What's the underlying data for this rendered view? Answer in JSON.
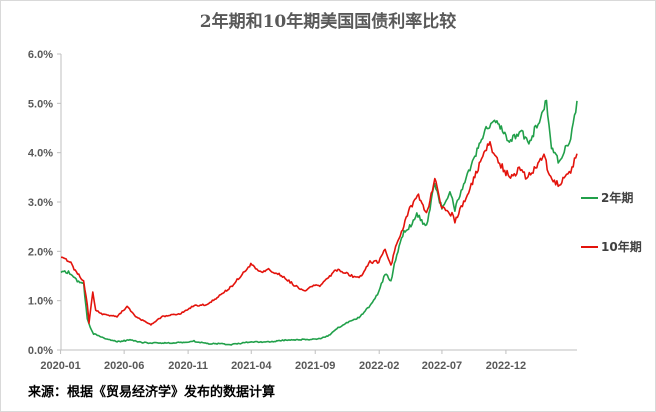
{
  "chart_data": {
    "type": "line",
    "title": "2年期和10年期美国国债利率比较",
    "source_note": "来源：根据《贸易经济学》发布的数据计算",
    "x_range": [
      "2020-01-02",
      "2023-05-20"
    ],
    "x_ticks": [
      {
        "date": "2020-01-01",
        "label": "2020-01"
      },
      {
        "date": "2020-06-01",
        "label": "2020-06"
      },
      {
        "date": "2020-11-01",
        "label": "2020-11"
      },
      {
        "date": "2021-04-01",
        "label": "2021-04"
      },
      {
        "date": "2021-09-01",
        "label": "2021-09"
      },
      {
        "date": "2022-02-01",
        "label": "2022-02"
      },
      {
        "date": "2022-07-01",
        "label": "2022-07"
      },
      {
        "date": "2022-12-01",
        "label": "2022-12"
      }
    ],
    "y_ticks": [
      {
        "value": 0,
        "label": "0.0%"
      },
      {
        "value": 1,
        "label": "1.0%"
      },
      {
        "value": 2,
        "label": "2.0%"
      },
      {
        "value": 3,
        "label": "3.0%"
      },
      {
        "value": 4,
        "label": "4.0%"
      },
      {
        "value": 5,
        "label": "5.0%"
      },
      {
        "value": 6,
        "label": "6.0%"
      }
    ],
    "ylim": [
      0,
      6
    ],
    "ylabel_unit": "%",
    "grid": false,
    "legend_position": "right",
    "series": [
      {
        "name": "2年期",
        "color": "#21a04a",
        "points": [
          [
            "2020-01-02",
            1.57
          ],
          [
            "2020-01-20",
            1.58
          ],
          [
            "2020-02-10",
            1.4
          ],
          [
            "2020-02-25",
            1.35
          ],
          [
            "2020-03-05",
            0.62
          ],
          [
            "2020-03-12",
            0.45
          ],
          [
            "2020-03-20",
            0.33
          ],
          [
            "2020-04-10",
            0.25
          ],
          [
            "2020-05-15",
            0.17
          ],
          [
            "2020-06-15",
            0.2
          ],
          [
            "2020-07-15",
            0.15
          ],
          [
            "2020-08-15",
            0.14
          ],
          [
            "2020-09-15",
            0.14
          ],
          [
            "2020-10-15",
            0.15
          ],
          [
            "2020-11-15",
            0.18
          ],
          [
            "2020-12-15",
            0.13
          ],
          [
            "2021-01-15",
            0.13
          ],
          [
            "2021-02-15",
            0.11
          ],
          [
            "2021-03-15",
            0.15
          ],
          [
            "2021-04-15",
            0.16
          ],
          [
            "2021-05-15",
            0.16
          ],
          [
            "2021-06-15",
            0.2
          ],
          [
            "2021-07-15",
            0.21
          ],
          [
            "2021-08-15",
            0.21
          ],
          [
            "2021-09-10",
            0.23
          ],
          [
            "2021-10-01",
            0.28
          ],
          [
            "2021-10-20",
            0.42
          ],
          [
            "2021-11-15",
            0.55
          ],
          [
            "2021-12-15",
            0.66
          ],
          [
            "2022-01-10",
            0.9
          ],
          [
            "2022-01-31",
            1.18
          ],
          [
            "2022-02-15",
            1.55
          ],
          [
            "2022-03-01",
            1.4
          ],
          [
            "2022-03-15",
            1.95
          ],
          [
            "2022-04-01",
            2.4
          ],
          [
            "2022-04-15",
            2.5
          ],
          [
            "2022-05-02",
            2.75
          ],
          [
            "2022-05-25",
            2.5
          ],
          [
            "2022-06-14",
            3.4
          ],
          [
            "2022-07-01",
            2.85
          ],
          [
            "2022-07-20",
            3.2
          ],
          [
            "2022-08-01",
            2.85
          ],
          [
            "2022-08-25",
            3.4
          ],
          [
            "2022-09-15",
            3.85
          ],
          [
            "2022-10-01",
            4.2
          ],
          [
            "2022-10-20",
            4.55
          ],
          [
            "2022-11-04",
            4.72
          ],
          [
            "2022-11-20",
            4.5
          ],
          [
            "2022-12-01",
            4.3
          ],
          [
            "2022-12-15",
            4.25
          ],
          [
            "2023-01-05",
            4.45
          ],
          [
            "2023-01-25",
            4.2
          ],
          [
            "2023-02-10",
            4.5
          ],
          [
            "2023-02-25",
            4.8
          ],
          [
            "2023-03-08",
            5.07
          ],
          [
            "2023-03-20",
            4.05
          ],
          [
            "2023-04-05",
            3.85
          ],
          [
            "2023-04-25",
            4.1
          ],
          [
            "2023-05-05",
            4.3
          ],
          [
            "2023-05-20",
            5.05
          ]
        ]
      },
      {
        "name": "10年期",
        "color": "#e3130c",
        "points": [
          [
            "2020-01-02",
            1.88
          ],
          [
            "2020-01-20",
            1.82
          ],
          [
            "2020-02-05",
            1.62
          ],
          [
            "2020-02-25",
            1.38
          ],
          [
            "2020-03-05",
            0.92
          ],
          [
            "2020-03-09",
            0.54
          ],
          [
            "2020-03-18",
            1.18
          ],
          [
            "2020-03-25",
            0.82
          ],
          [
            "2020-04-10",
            0.72
          ],
          [
            "2020-05-15",
            0.68
          ],
          [
            "2020-06-08",
            0.88
          ],
          [
            "2020-07-01",
            0.66
          ],
          [
            "2020-08-04",
            0.52
          ],
          [
            "2020-09-01",
            0.68
          ],
          [
            "2020-10-15",
            0.74
          ],
          [
            "2020-11-15",
            0.9
          ],
          [
            "2020-12-15",
            0.92
          ],
          [
            "2021-01-15",
            1.1
          ],
          [
            "2021-02-15",
            1.3
          ],
          [
            "2021-03-01",
            1.45
          ],
          [
            "2021-03-31",
            1.74
          ],
          [
            "2021-04-20",
            1.58
          ],
          [
            "2021-05-15",
            1.63
          ],
          [
            "2021-06-15",
            1.5
          ],
          [
            "2021-07-15",
            1.3
          ],
          [
            "2021-08-05",
            1.2
          ],
          [
            "2021-08-25",
            1.3
          ],
          [
            "2021-09-15",
            1.31
          ],
          [
            "2021-10-20",
            1.63
          ],
          [
            "2021-11-15",
            1.55
          ],
          [
            "2021-12-15",
            1.45
          ],
          [
            "2022-01-10",
            1.78
          ],
          [
            "2022-01-31",
            1.79
          ],
          [
            "2022-02-15",
            2.05
          ],
          [
            "2022-03-01",
            1.72
          ],
          [
            "2022-03-15",
            2.15
          ],
          [
            "2022-04-15",
            2.85
          ],
          [
            "2022-05-06",
            3.12
          ],
          [
            "2022-05-25",
            2.75
          ],
          [
            "2022-06-14",
            3.48
          ],
          [
            "2022-07-01",
            2.88
          ],
          [
            "2022-07-25",
            2.75
          ],
          [
            "2022-08-01",
            2.6
          ],
          [
            "2022-08-25",
            3.04
          ],
          [
            "2022-09-15",
            3.45
          ],
          [
            "2022-10-01",
            3.8
          ],
          [
            "2022-10-21",
            4.22
          ],
          [
            "2022-11-10",
            3.85
          ],
          [
            "2022-12-01",
            3.6
          ],
          [
            "2022-12-15",
            3.5
          ],
          [
            "2023-01-05",
            3.7
          ],
          [
            "2023-01-20",
            3.48
          ],
          [
            "2023-02-10",
            3.7
          ],
          [
            "2023-03-02",
            4.0
          ],
          [
            "2023-03-15",
            3.5
          ],
          [
            "2023-04-05",
            3.35
          ],
          [
            "2023-04-25",
            3.5
          ],
          [
            "2023-05-05",
            3.6
          ],
          [
            "2023-05-20",
            3.98
          ]
        ]
      }
    ]
  }
}
